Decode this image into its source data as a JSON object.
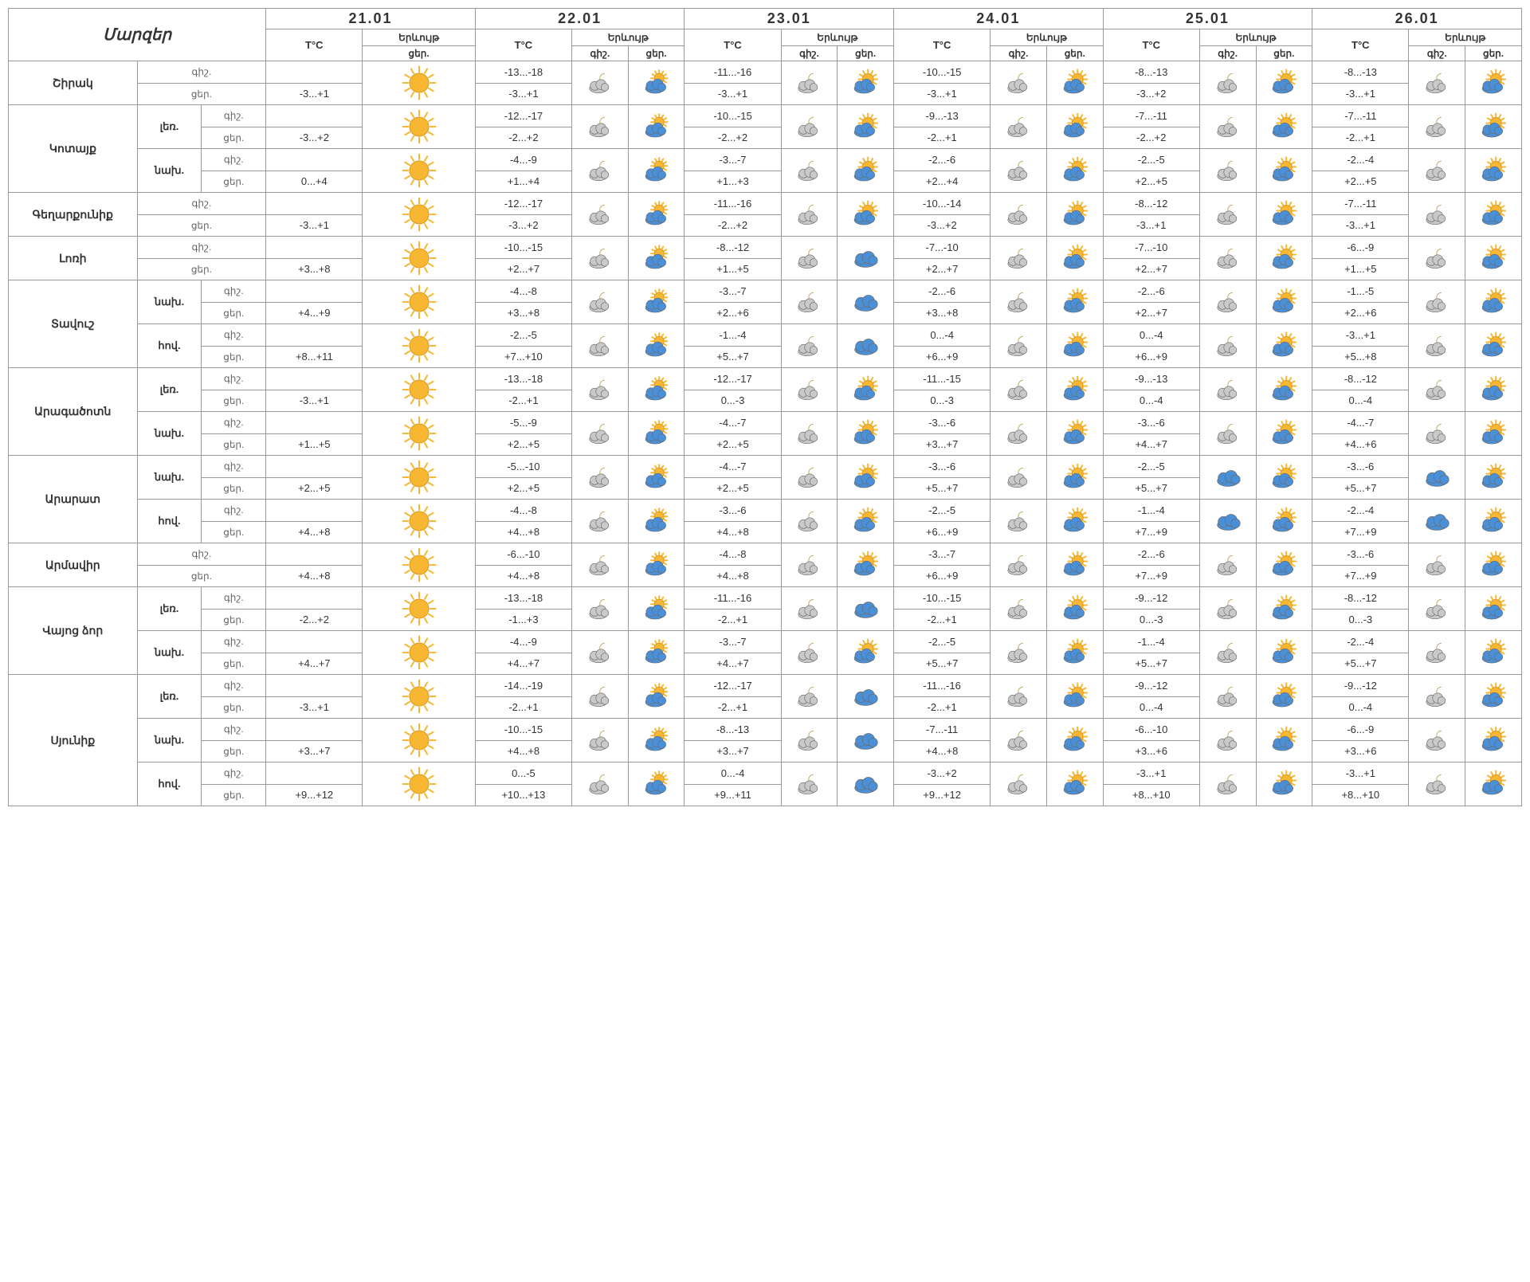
{
  "header": {
    "regions_label": "Մարզեր",
    "dates": [
      "21.01",
      "22.01",
      "23.01",
      "24.01",
      "25.01",
      "26.01"
    ],
    "temp_label": "T°C",
    "phenom_label": "Երևույթ",
    "night_label": "գիշ.",
    "day_label": "ցեր."
  },
  "icons": {
    "sun": {
      "kind": "sun"
    },
    "sun_cloud": {
      "kind": "sun_cloud"
    },
    "night_pc": {
      "kind": "night_pc"
    },
    "day_pc": {
      "kind": "day_pc"
    },
    "cloud": {
      "kind": "cloud"
    }
  },
  "colors": {
    "sun_core": "#f7b733",
    "sun_ray": "#f7b733",
    "cloud_light": "#c9c9c9",
    "cloud_dark": "#9aa0a6",
    "cloud_blue": "#4a90d9",
    "moon": "#e2c26b",
    "edge": "#6b6b6b",
    "cloud_white": "#e8e8e8"
  },
  "regions": [
    {
      "name": "Շիրակ",
      "zones": [
        {
          "name": null,
          "night": {
            "t": [
              "",
              "-13...-18",
              "-11...-16",
              "-10...-15",
              "-8...-13",
              "-8...-13"
            ]
          },
          "day": {
            "t": [
              "-3...+1",
              "-3...+1",
              "-3...+1",
              "-3...+1",
              "-3...+2",
              "-3...+1"
            ]
          },
          "w": [
            [
              "sun"
            ],
            [
              "night_pc",
              "day_pc"
            ],
            [
              "night_pc",
              "sun_cloud"
            ],
            [
              "night_pc",
              "sun_cloud"
            ],
            [
              "night_pc",
              "sun_cloud"
            ],
            [
              "night_pc",
              "sun_cloud"
            ]
          ]
        }
      ]
    },
    {
      "name": "Կոտայք",
      "zones": [
        {
          "name": "լեռ.",
          "night": {
            "t": [
              "",
              "-12...-17",
              "-10...-15",
              "-9...-13",
              "-7...-11",
              "-7...-11"
            ]
          },
          "day": {
            "t": [
              "-3...+2",
              "-2...+2",
              "-2...+2",
              "-2...+1",
              "-2...+2",
              "-2...+1"
            ]
          },
          "w": [
            [
              "sun"
            ],
            [
              "night_pc",
              "day_pc"
            ],
            [
              "night_pc",
              "sun_cloud"
            ],
            [
              "night_pc",
              "sun_cloud"
            ],
            [
              "night_pc",
              "sun_cloud"
            ],
            [
              "night_pc",
              "sun_cloud"
            ]
          ]
        },
        {
          "name": "նախ.",
          "night": {
            "t": [
              "",
              "-4...-9",
              "-3...-7",
              "-2...-6",
              "-2...-5",
              "-2...-4"
            ]
          },
          "day": {
            "t": [
              "0...+4",
              "+1...+4",
              "+1...+3",
              "+2...+4",
              "+2...+5",
              "+2...+5"
            ]
          },
          "w": [
            [
              "sun"
            ],
            [
              "night_pc",
              "day_pc"
            ],
            [
              "night_pc",
              "sun_cloud"
            ],
            [
              "night_pc",
              "sun_cloud"
            ],
            [
              "night_pc",
              "sun_cloud"
            ],
            [
              "night_pc",
              "sun_cloud"
            ]
          ]
        }
      ]
    },
    {
      "name": "Գեղարքունիք",
      "zones": [
        {
          "name": null,
          "night": {
            "t": [
              "",
              "-12...-17",
              "-11...-16",
              "-10...-14",
              "-8...-12",
              "-7...-11"
            ]
          },
          "day": {
            "t": [
              "-3...+1",
              "-3...+2",
              "-2...+2",
              "-3...+2",
              "-3...+1",
              "-3...+1"
            ]
          },
          "w": [
            [
              "sun"
            ],
            [
              "night_pc",
              "day_pc"
            ],
            [
              "night_pc",
              "sun_cloud"
            ],
            [
              "night_pc",
              "sun_cloud"
            ],
            [
              "night_pc",
              "sun_cloud"
            ],
            [
              "night_pc",
              "sun_cloud"
            ]
          ]
        }
      ]
    },
    {
      "name": "Լոռի",
      "zones": [
        {
          "name": null,
          "night": {
            "t": [
              "",
              "-10...-15",
              "-8...-12",
              "-7...-10",
              "-7...-10",
              "-6...-9"
            ]
          },
          "day": {
            "t": [
              "+3...+8",
              "+2...+7",
              "+1...+5",
              "+2...+7",
              "+2...+7",
              "+1...+5"
            ]
          },
          "w": [
            [
              "sun"
            ],
            [
              "night_pc",
              "day_pc"
            ],
            [
              "night_pc",
              "cloud"
            ],
            [
              "night_pc",
              "sun_cloud"
            ],
            [
              "night_pc",
              "sun_cloud"
            ],
            [
              "night_pc",
              "sun_cloud"
            ]
          ]
        }
      ]
    },
    {
      "name": "Տավուշ",
      "zones": [
        {
          "name": "նախ.",
          "night": {
            "t": [
              "",
              "-4...-8",
              "-3...-7",
              "-2...-6",
              "-2...-6",
              "-1...-5"
            ]
          },
          "day": {
            "t": [
              "+4...+9",
              "+3...+8",
              "+2...+6",
              "+3...+8",
              "+2...+7",
              "+2...+6"
            ]
          },
          "w": [
            [
              "sun"
            ],
            [
              "night_pc",
              "day_pc"
            ],
            [
              "night_pc",
              "cloud"
            ],
            [
              "night_pc",
              "sun_cloud"
            ],
            [
              "night_pc",
              "sun_cloud"
            ],
            [
              "night_pc",
              "sun_cloud"
            ]
          ]
        },
        {
          "name": "հով.",
          "night": {
            "t": [
              "",
              "-2...-5",
              "-1...-4",
              "0...-4",
              "0...-4",
              "-3...+1"
            ]
          },
          "day": {
            "t": [
              "+8...+11",
              "+7...+10",
              "+5...+7",
              "+6...+9",
              "+6...+9",
              "+5...+8"
            ]
          },
          "w": [
            [
              "sun"
            ],
            [
              "night_pc",
              "day_pc"
            ],
            [
              "night_pc",
              "cloud"
            ],
            [
              "night_pc",
              "sun_cloud"
            ],
            [
              "night_pc",
              "sun_cloud"
            ],
            [
              "night_pc",
              "sun_cloud"
            ]
          ]
        }
      ]
    },
    {
      "name": "Արագածոտն",
      "zones": [
        {
          "name": "լեռ.",
          "night": {
            "t": [
              "",
              "-13...-18",
              "-12...-17",
              "-11...-15",
              "-9...-13",
              "-8...-12"
            ]
          },
          "day": {
            "t": [
              "-3...+1",
              "-2...+1",
              "0...-3",
              "0...-3",
              "0...-4",
              "0...-4"
            ]
          },
          "w": [
            [
              "sun"
            ],
            [
              "night_pc",
              "day_pc"
            ],
            [
              "night_pc",
              "sun_cloud"
            ],
            [
              "night_pc",
              "sun_cloud"
            ],
            [
              "night_pc",
              "sun_cloud"
            ],
            [
              "night_pc",
              "sun_cloud"
            ]
          ]
        },
        {
          "name": "նախ.",
          "night": {
            "t": [
              "",
              "-5...-9",
              "-4...-7",
              "-3...-6",
              "-3...-6",
              "-4...-7"
            ]
          },
          "day": {
            "t": [
              "+1...+5",
              "+2...+5",
              "+2...+5",
              "+3...+7",
              "+4...+7",
              "+4...+6"
            ]
          },
          "w": [
            [
              "sun"
            ],
            [
              "night_pc",
              "day_pc"
            ],
            [
              "night_pc",
              "sun_cloud"
            ],
            [
              "night_pc",
              "sun_cloud"
            ],
            [
              "night_pc",
              "sun_cloud"
            ],
            [
              "night_pc",
              "sun_cloud"
            ]
          ]
        }
      ]
    },
    {
      "name": "Արարատ",
      "zones": [
        {
          "name": "նախ.",
          "night": {
            "t": [
              "",
              "-5...-10",
              "-4...-7",
              "-3...-6",
              "-2...-5",
              "-3...-6"
            ]
          },
          "day": {
            "t": [
              "+2...+5",
              "+2...+5",
              "+2...+5",
              "+5...+7",
              "+5...+7",
              "+5...+7"
            ]
          },
          "w": [
            [
              "sun"
            ],
            [
              "night_pc",
              "day_pc"
            ],
            [
              "night_pc",
              "sun_cloud"
            ],
            [
              "night_pc",
              "sun_cloud"
            ],
            [
              "cloud",
              "sun_cloud"
            ],
            [
              "cloud",
              "sun_cloud"
            ]
          ]
        },
        {
          "name": "հով.",
          "night": {
            "t": [
              "",
              "-4...-8",
              "-3...-6",
              "-2...-5",
              "-1...-4",
              "-2...-4"
            ]
          },
          "day": {
            "t": [
              "+4...+8",
              "+4...+8",
              "+4...+8",
              "+6...+9",
              "+7...+9",
              "+7...+9"
            ]
          },
          "w": [
            [
              "sun"
            ],
            [
              "night_pc",
              "day_pc"
            ],
            [
              "night_pc",
              "sun_cloud"
            ],
            [
              "night_pc",
              "sun_cloud"
            ],
            [
              "cloud",
              "sun_cloud"
            ],
            [
              "cloud",
              "sun_cloud"
            ]
          ]
        }
      ]
    },
    {
      "name": "Արմավիր",
      "zones": [
        {
          "name": null,
          "night": {
            "t": [
              "",
              "-6...-10",
              "-4...-8",
              "-3...-7",
              "-2...-6",
              "-3...-6"
            ]
          },
          "day": {
            "t": [
              "+4...+8",
              "+4...+8",
              "+4...+8",
              "+6...+9",
              "+7...+9",
              "+7...+9"
            ]
          },
          "w": [
            [
              "sun"
            ],
            [
              "night_pc",
              "day_pc"
            ],
            [
              "night_pc",
              "sun_cloud"
            ],
            [
              "night_pc",
              "sun_cloud"
            ],
            [
              "night_pc",
              "sun_cloud"
            ],
            [
              "night_pc",
              "sun_cloud"
            ]
          ]
        }
      ]
    },
    {
      "name": "Վայոց ձոր",
      "zones": [
        {
          "name": "լեռ.",
          "night": {
            "t": [
              "",
              "-13...-18",
              "-11...-16",
              "-10...-15",
              "-9...-12",
              "-8...-12"
            ]
          },
          "day": {
            "t": [
              "-2...+2",
              "-1...+3",
              "-2...+1",
              "-2...+1",
              "0...-3",
              "0...-3"
            ]
          },
          "w": [
            [
              "sun"
            ],
            [
              "night_pc",
              "day_pc"
            ],
            [
              "night_pc",
              "cloud"
            ],
            [
              "night_pc",
              "sun_cloud"
            ],
            [
              "night_pc",
              "sun_cloud"
            ],
            [
              "night_pc",
              "sun_cloud"
            ]
          ]
        },
        {
          "name": "նախ.",
          "night": {
            "t": [
              "",
              "-4...-9",
              "-3...-7",
              "-2...-5",
              "-1...-4",
              "-2...-4"
            ]
          },
          "day": {
            "t": [
              "+4...+7",
              "+4...+7",
              "+4...+7",
              "+5...+7",
              "+5...+7",
              "+5...+7"
            ]
          },
          "w": [
            [
              "sun"
            ],
            [
              "night_pc",
              "day_pc"
            ],
            [
              "night_pc",
              "sun_cloud"
            ],
            [
              "night_pc",
              "sun_cloud"
            ],
            [
              "night_pc",
              "sun_cloud"
            ],
            [
              "night_pc",
              "sun_cloud"
            ]
          ]
        }
      ]
    },
    {
      "name": "Սյունիք",
      "zones": [
        {
          "name": "լեռ.",
          "night": {
            "t": [
              "",
              "-14...-19",
              "-12...-17",
              "-11...-16",
              "-9...-12",
              "-9...-12"
            ]
          },
          "day": {
            "t": [
              "-3...+1",
              "-2...+1",
              "-2...+1",
              "-2...+1",
              "0...-4",
              "0...-4"
            ]
          },
          "w": [
            [
              "sun"
            ],
            [
              "night_pc",
              "day_pc"
            ],
            [
              "night_pc",
              "cloud"
            ],
            [
              "night_pc",
              "sun_cloud"
            ],
            [
              "night_pc",
              "sun_cloud"
            ],
            [
              "night_pc",
              "sun_cloud"
            ]
          ]
        },
        {
          "name": "նախ.",
          "night": {
            "t": [
              "",
              "-10...-15",
              "-8...-13",
              "-7...-11",
              "-6...-10",
              "-6...-9"
            ]
          },
          "day": {
            "t": [
              "+3...+7",
              "+4...+8",
              "+3...+7",
              "+4...+8",
              "+3...+6",
              "+3...+6"
            ]
          },
          "w": [
            [
              "sun"
            ],
            [
              "night_pc",
              "day_pc"
            ],
            [
              "night_pc",
              "cloud"
            ],
            [
              "night_pc",
              "sun_cloud"
            ],
            [
              "night_pc",
              "sun_cloud"
            ],
            [
              "night_pc",
              "sun_cloud"
            ]
          ]
        },
        {
          "name": "հով.",
          "night": {
            "t": [
              "",
              "0...-5",
              "0...-4",
              "-3...+2",
              "-3...+1",
              "-3...+1"
            ]
          },
          "day": {
            "t": [
              "+9...+12",
              "+10...+13",
              "+9...+11",
              "+9...+12",
              "+8...+10",
              "+8...+10"
            ]
          },
          "w": [
            [
              "sun"
            ],
            [
              "night_pc",
              "day_pc"
            ],
            [
              "night_pc",
              "cloud"
            ],
            [
              "night_pc",
              "sun_cloud"
            ],
            [
              "night_pc",
              "sun_cloud"
            ],
            [
              "night_pc",
              "sun_cloud"
            ]
          ]
        }
      ]
    }
  ]
}
